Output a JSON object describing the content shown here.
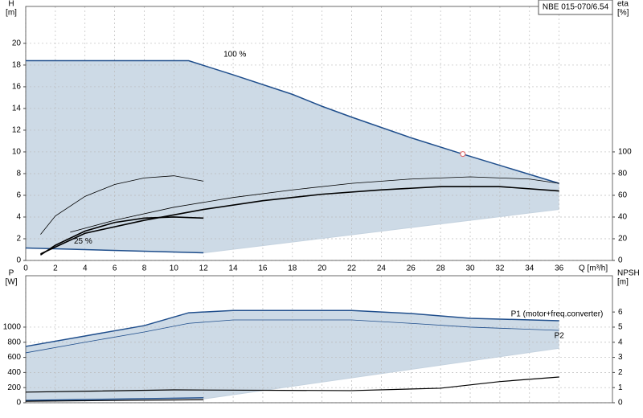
{
  "chart_data": [
    {
      "type": "line",
      "title": "NBE 015-070/6.54",
      "x_label": "Q [m³/h]",
      "y_label": "H",
      "y_unit": "[m]",
      "y2_label": "eta",
      "y2_unit": "[%]",
      "xlim": [
        0,
        39.6
      ],
      "ylim": [
        0,
        23.4
      ],
      "y2lim": [
        0,
        234
      ],
      "xticks": [
        0,
        2,
        4,
        6,
        8,
        10,
        12,
        14,
        16,
        18,
        20,
        22,
        24,
        26,
        28,
        30,
        32,
        34,
        36
      ],
      "yticks": [
        0,
        2,
        4,
        6,
        8,
        10,
        12,
        14,
        16,
        18,
        20
      ],
      "y2ticks": [
        0,
        20,
        40,
        60,
        80,
        100
      ],
      "grid": true,
      "fill_color": "#cddae6",
      "series": [
        {
          "label": "100 %",
          "color": "#1f4e8c",
          "width": 1.5,
          "x": [
            0,
            11,
            14,
            18,
            20,
            22,
            26,
            29.5,
            36
          ],
          "values": [
            18.4,
            18.4,
            17.1,
            15.3,
            14.2,
            13.2,
            11.3,
            9.8,
            7.1
          ]
        },
        {
          "label": "25 %",
          "color": "#1f4e8c",
          "width": 1.5,
          "x": [
            0,
            12
          ],
          "values": [
            1.15,
            0.7
          ]
        },
        {
          "color": "#c5d3e0",
          "width": 1,
          "x": [
            12,
            36
          ],
          "values": [
            0.7,
            4.7
          ]
        },
        {
          "color": "#000000",
          "width": 0.8,
          "axis": "y2",
          "x": [
            3,
            6,
            10,
            14,
            18,
            22,
            26,
            30,
            34,
            36
          ],
          "values": [
            26,
            37,
            49,
            58,
            65,
            71,
            75,
            77,
            75,
            71
          ]
        },
        {
          "color": "#000000",
          "width": 1.6,
          "axis": "y2",
          "x": [
            1,
            4,
            8,
            12,
            16,
            20,
            24,
            28,
            32,
            36
          ],
          "values": [
            6,
            25,
            37,
            47,
            55,
            61,
            65,
            68,
            68,
            64
          ]
        },
        {
          "color": "#000000",
          "width": 0.8,
          "axis": "y2",
          "x": [
            1,
            2,
            4,
            6,
            8,
            10,
            12
          ],
          "values": [
            24,
            41,
            59,
            70,
            76,
            78,
            73
          ]
        },
        {
          "color": "#000000",
          "width": 1.6,
          "axis": "y2",
          "x": [
            1,
            2,
            4,
            6,
            8,
            10,
            12
          ],
          "values": [
            5,
            14,
            27,
            35,
            39,
            40,
            39
          ]
        }
      ],
      "point": {
        "x": 29.5,
        "y": 9.8,
        "color": "#e06060"
      }
    },
    {
      "type": "line",
      "y_label": "P",
      "y_unit": "[W]",
      "y2_label": "NPSH",
      "y2_unit": "[m]",
      "xlim": [
        0,
        39.6
      ],
      "ylim": [
        0,
        1680
      ],
      "y2lim": [
        0,
        8.4
      ],
      "yticks": [
        0,
        200,
        400,
        600,
        800,
        1000
      ],
      "y2ticks": [
        0,
        1,
        2,
        3,
        4,
        5,
        6
      ],
      "grid": true,
      "fill_color": "#cddae6",
      "series": [
        {
          "label": "P1 (motor+freq.converter)",
          "color": "#1f4e8c",
          "width": 1.5,
          "x": [
            0,
            4,
            8,
            11,
            14,
            18,
            22,
            26,
            30,
            36
          ],
          "values": [
            745,
            883,
            1020,
            1190,
            1220,
            1220,
            1220,
            1180,
            1117,
            1085
          ]
        },
        {
          "label": "P2",
          "color": "#1f4e8c",
          "width": 0.8,
          "x": [
            0,
            4,
            8,
            11,
            14,
            18,
            22,
            26,
            30,
            36
          ],
          "values": [
            660,
            800,
            936,
            1050,
            1095,
            1095,
            1095,
            1050,
            1000,
            957
          ]
        },
        {
          "color": "#c5d3e0",
          "width": 1,
          "x": [
            12,
            36
          ],
          "values": [
            50,
            720
          ]
        },
        {
          "color": "#000000",
          "width": 1.2,
          "axis": "y2",
          "x": [
            0,
            10,
            22,
            28,
            32,
            36
          ],
          "values": [
            0.7,
            0.85,
            0.8,
            0.96,
            1.4,
            1.7
          ]
        },
        {
          "color": "#1f4e8c",
          "width": 1.5,
          "x": [
            0,
            12
          ],
          "values": [
            30,
            65
          ]
        },
        {
          "color": "#000000",
          "width": 1.2,
          "x": [
            0,
            12
          ],
          "values": [
            20,
            40
          ]
        }
      ]
    }
  ]
}
